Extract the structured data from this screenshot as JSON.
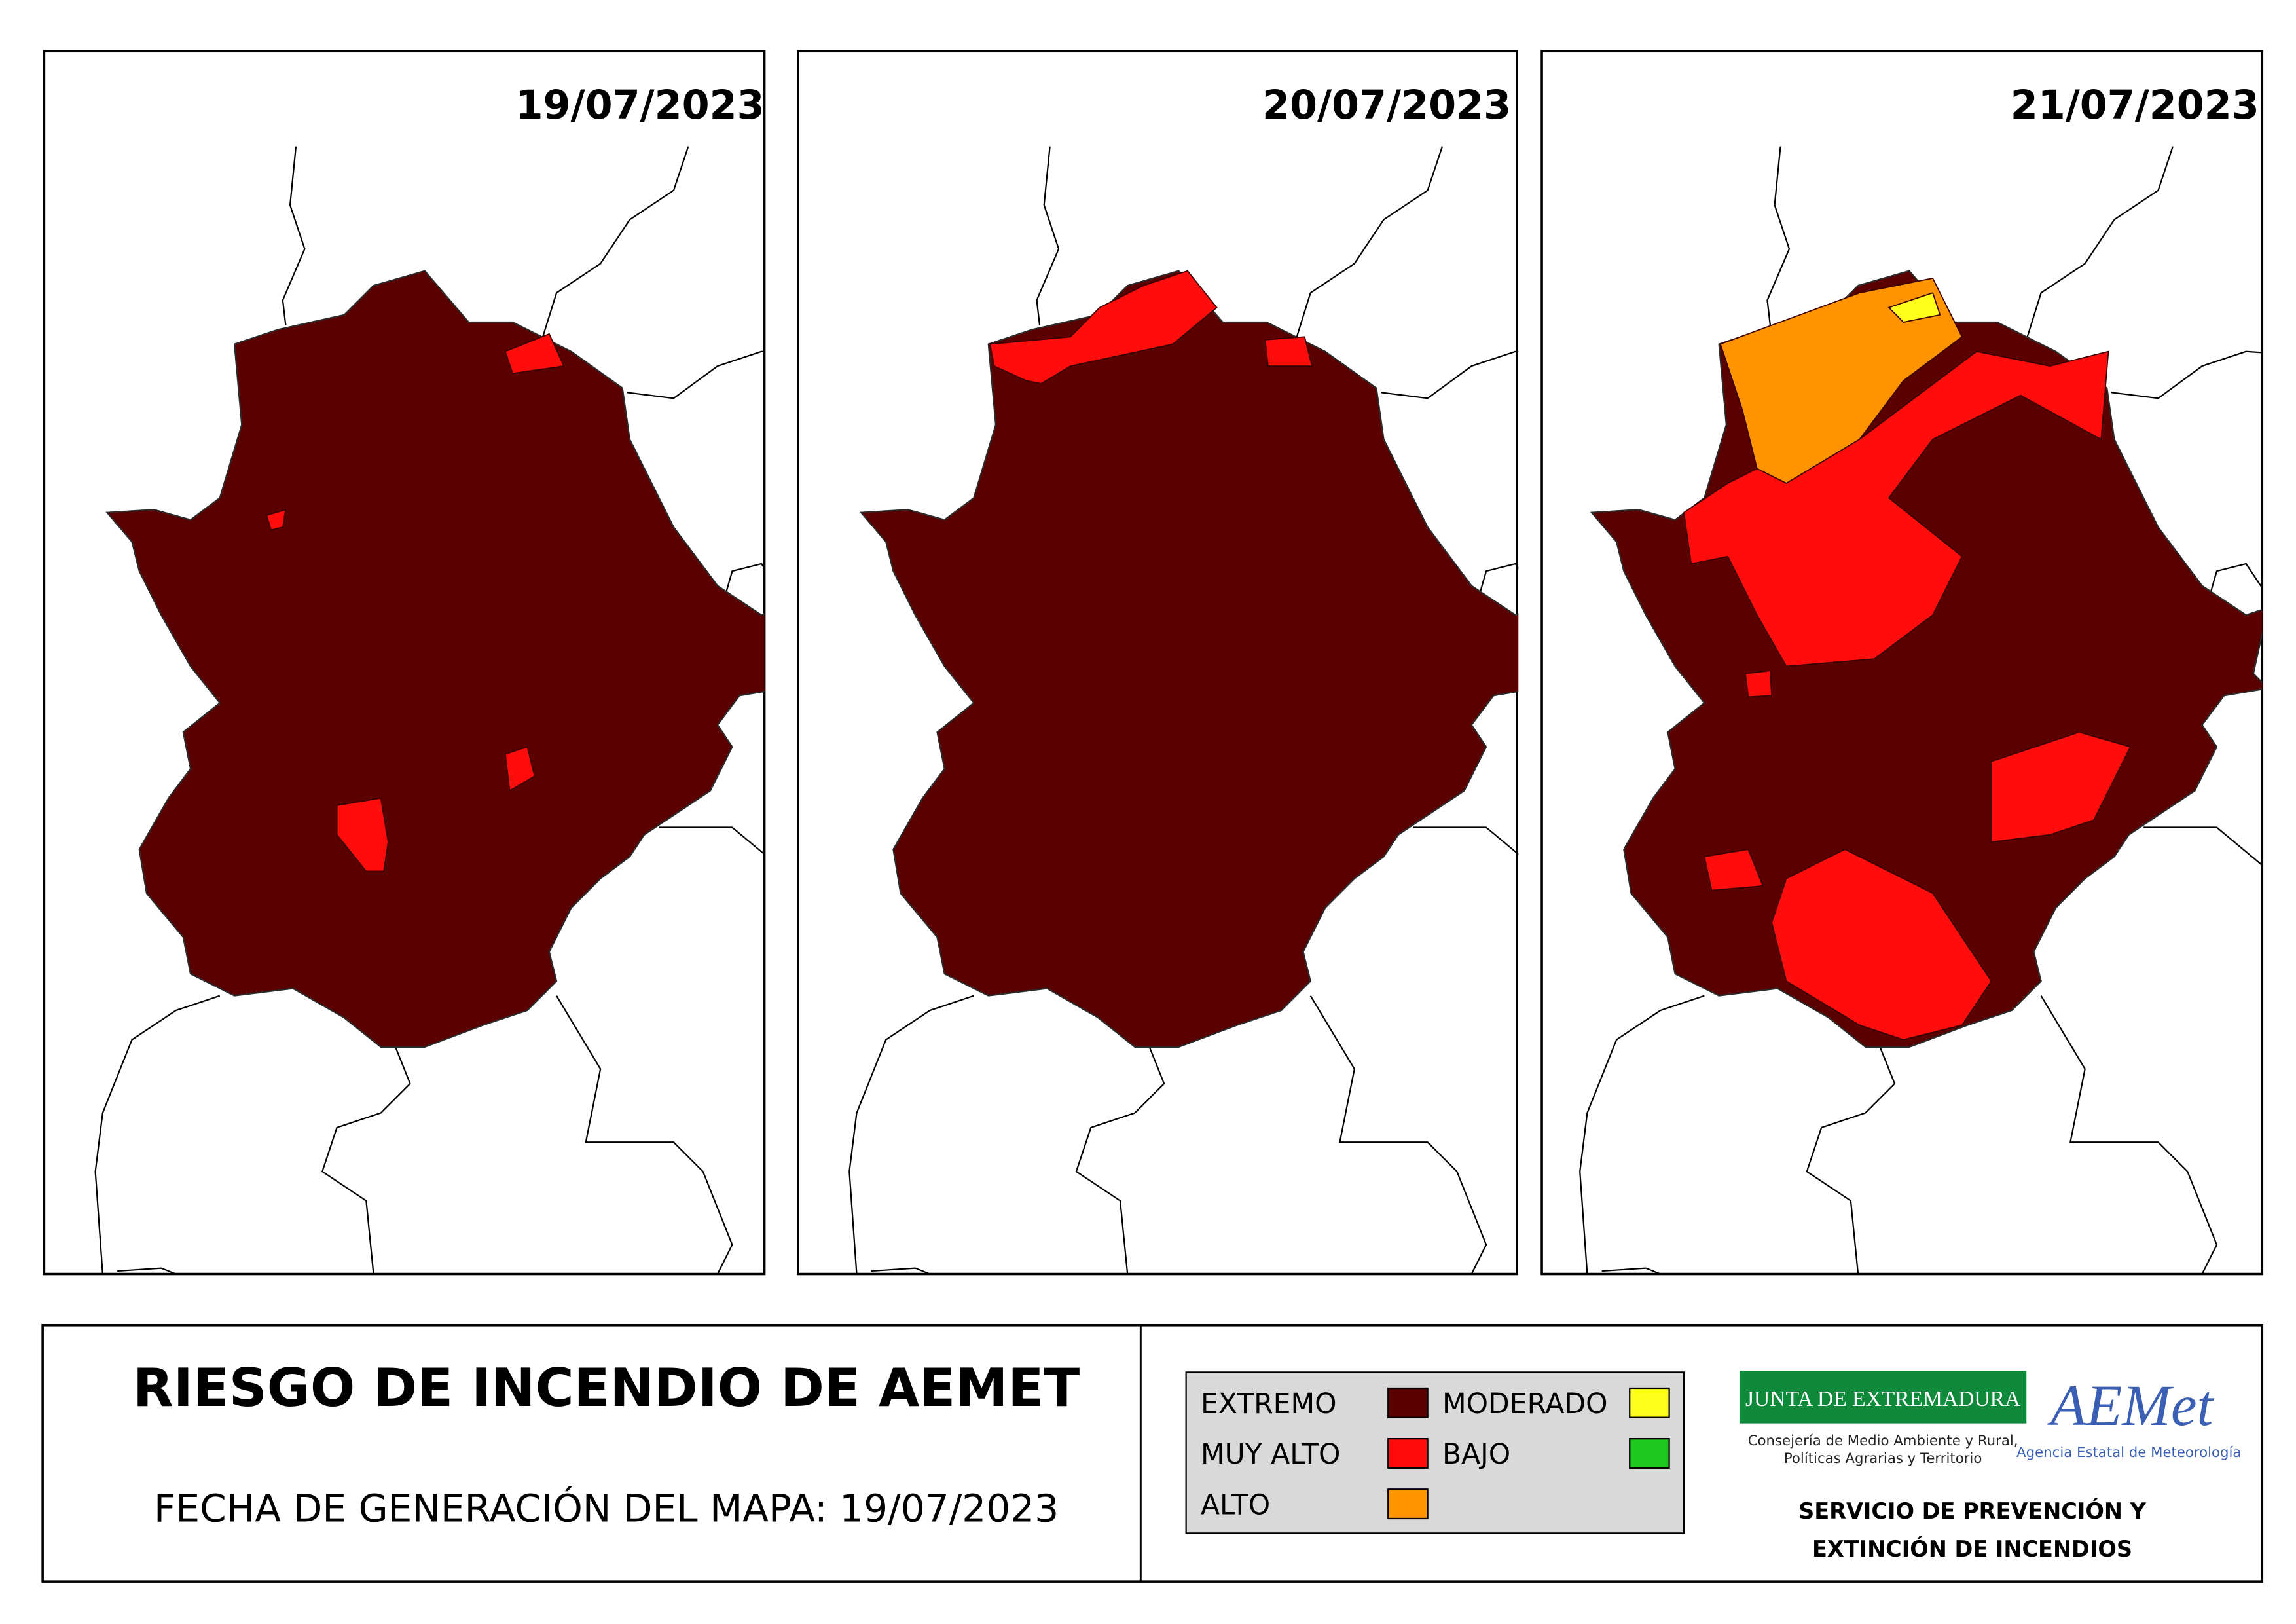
{
  "panels": [
    {
      "date": "19/07/2023"
    },
    {
      "date": "20/07/2023"
    },
    {
      "date": "21/07/2023"
    }
  ],
  "footer": {
    "title": "RIESGO DE INCENDIO DE AEMET",
    "subtitle": "FECHA DE GENERACIÓN DEL MAPA: 19/07/2023",
    "legend": [
      {
        "label": "EXTREMO",
        "color": "#5a0000"
      },
      {
        "label": "MUY ALTO",
        "color": "#ff0d0d"
      },
      {
        "label": "ALTO",
        "color": "#ff9400"
      },
      {
        "label": "MODERADO",
        "color": "#ffff1a"
      },
      {
        "label": "BAJO",
        "color": "#1ec81e"
      }
    ],
    "junta": {
      "name": "JUNTA DE EXTREMADURA",
      "lines": [
        "Consejería de Medio Ambiente y Rural,",
        "Políticas Agrarias y Territorio"
      ]
    },
    "aemet": {
      "name": "AEMet",
      "tagline": "Agencia Estatal de Meteorología"
    },
    "service": [
      "SERVICIO DE PREVENCIÓN Y",
      "EXTINCIÓN DE INCENDIOS"
    ]
  }
}
